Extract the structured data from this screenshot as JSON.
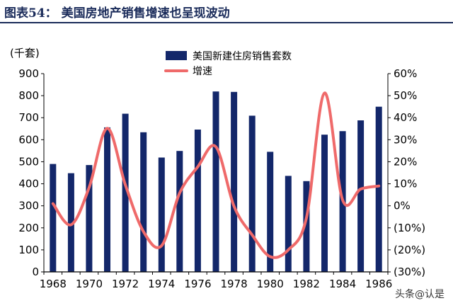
{
  "title": "图表54： 美国房地产销售增速也呈现波动",
  "watermark": "头条@认是",
  "chart_data": {
    "type": "bar",
    "y_unit_label": "(千套)",
    "x": [
      1968,
      1969,
      1970,
      1971,
      1972,
      1973,
      1974,
      1975,
      1976,
      1977,
      1978,
      1979,
      1980,
      1981,
      1982,
      1983,
      1984,
      1985,
      1986
    ],
    "x_tick_labels": [
      "1968",
      "1970",
      "1972",
      "1974",
      "1976",
      "1978",
      "1980",
      "1982",
      "1984",
      "1986"
    ],
    "series": [
      {
        "name": "美国新建住房销售套数",
        "type": "bar",
        "axis": "left",
        "color": "#13276a",
        "values": [
          490,
          448,
          485,
          656,
          718,
          634,
          519,
          549,
          646,
          819,
          817,
          709,
          545,
          436,
          412,
          623,
          639,
          688,
          750
        ]
      },
      {
        "name": "增速",
        "type": "line",
        "axis": "right",
        "color": "#ef6a6a",
        "values": [
          1,
          -8.6,
          8.3,
          35.2,
          9.5,
          -11.7,
          -18.1,
          5.8,
          17.7,
          26.8,
          -0.2,
          -13.2,
          -23.1,
          -20,
          -5.5,
          51.2,
          2.6,
          7.6,
          9
        ]
      }
    ],
    "y_left": {
      "range": [
        0,
        900
      ],
      "ticks": [
        "0",
        "100",
        "200",
        "300",
        "400",
        "500",
        "600",
        "700",
        "800",
        "900"
      ]
    },
    "y_right": {
      "range": [
        -30,
        60
      ],
      "ticks": [
        "(30%)",
        "(20%)",
        "(10%)",
        "0%",
        "10%",
        "20%",
        "30%",
        "40%",
        "50%",
        "60%"
      ]
    },
    "legend_position": "top-center",
    "grid": false
  }
}
